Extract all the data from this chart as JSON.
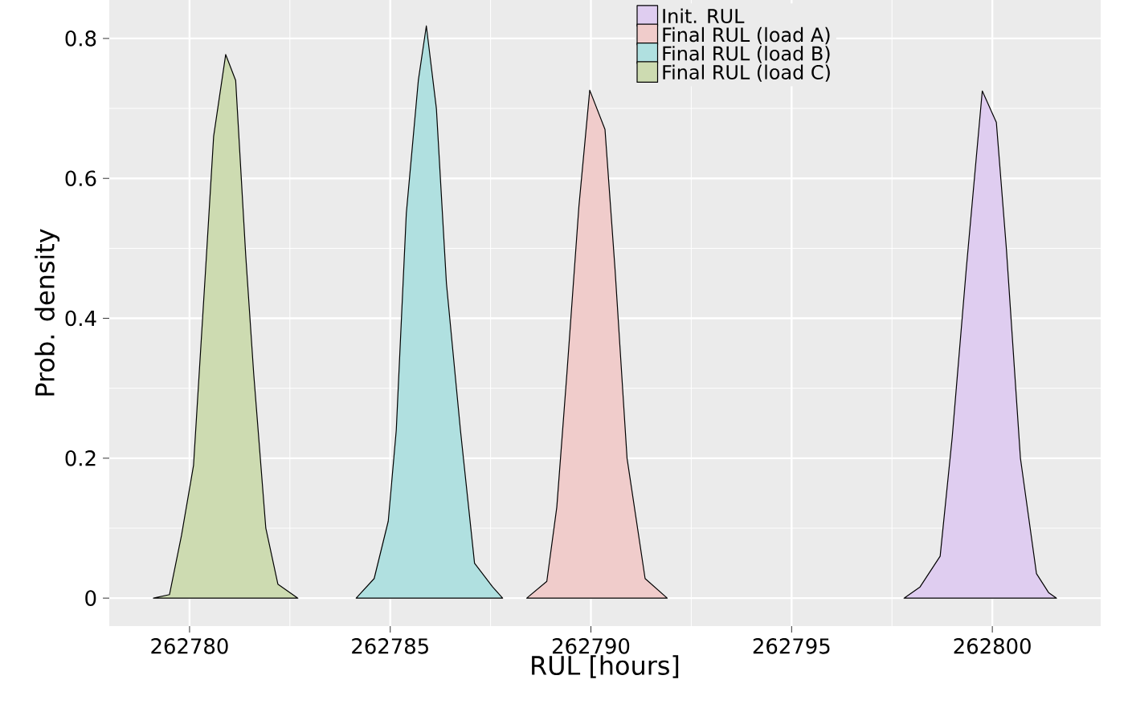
{
  "chart_data": {
    "type": "area",
    "xlabel": "RUL [hours]",
    "ylabel": "Prob. density",
    "xlim": [
      262778,
      262802.7
    ],
    "ylim": [
      -0.04,
      0.855
    ],
    "xticks": [
      262780,
      262785,
      262790,
      262795,
      262800
    ],
    "yticks": [
      0,
      0.2,
      0.4,
      0.6,
      0.8
    ],
    "grid": true,
    "legend": "top",
    "series": [
      {
        "name": "Init. RUL",
        "color": "#dfcdf0",
        "x": [
          262797.8,
          262798.2,
          262798.7,
          262799.0,
          262799.35,
          262799.75,
          262800.1,
          262800.35,
          262800.7,
          262801.1,
          262801.4,
          262801.6
        ],
        "values": [
          0,
          0.016,
          0.06,
          0.23,
          0.47,
          0.725,
          0.68,
          0.5,
          0.2,
          0.035,
          0.008,
          0
        ]
      },
      {
        "name": "Final RUL (load A)",
        "color": "#f0cccb",
        "x": [
          262788.4,
          262788.9,
          262789.15,
          262789.4,
          262789.7,
          262789.97,
          262790.35,
          262790.6,
          262790.9,
          262791.35,
          262791.9
        ],
        "values": [
          0,
          0.024,
          0.13,
          0.32,
          0.56,
          0.726,
          0.67,
          0.47,
          0.2,
          0.028,
          0
        ]
      },
      {
        "name": "Final RUL (load B)",
        "color": "#b0e0e0",
        "x": [
          262784.15,
          262784.6,
          262784.95,
          262785.15,
          262785.4,
          262785.7,
          262785.9,
          262786.15,
          262786.4,
          262786.75,
          262787.1,
          262787.55,
          262787.8
        ],
        "values": [
          0,
          0.028,
          0.11,
          0.24,
          0.55,
          0.74,
          0.818,
          0.7,
          0.45,
          0.24,
          0.05,
          0.016,
          0
        ]
      },
      {
        "name": "Final RUL (load C)",
        "color": "#cddbb1",
        "x": [
          262779.1,
          262779.5,
          262779.8,
          262780.1,
          262780.4,
          262780.6,
          262780.9,
          262781.15,
          262781.4,
          262781.6,
          262781.9,
          262782.2,
          262782.7
        ],
        "values": [
          0,
          0.005,
          0.09,
          0.19,
          0.47,
          0.66,
          0.777,
          0.74,
          0.49,
          0.32,
          0.1,
          0.02,
          0
        ]
      }
    ]
  }
}
